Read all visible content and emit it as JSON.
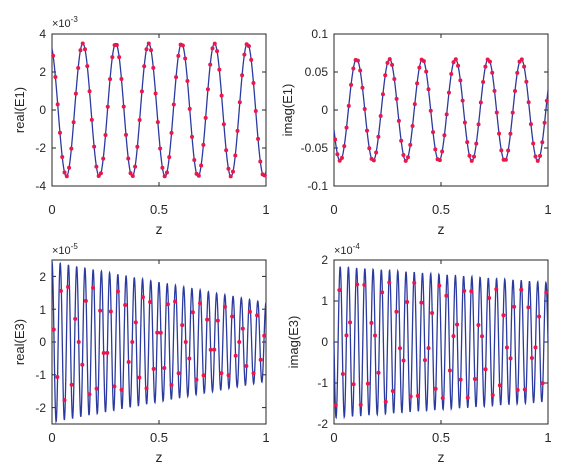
{
  "chart_data": [
    {
      "type": "line",
      "ylabel": "real(E1)",
      "xlabel": "z",
      "xlim": [
        0,
        1
      ],
      "ylim": [
        -4,
        4
      ],
      "exponent": "×10",
      "exponent_power": "-3",
      "xticks": [
        "0",
        "0.5",
        "1"
      ],
      "yticks": [
        "-4",
        "-2",
        "0",
        "2",
        "4"
      ],
      "yticks_values": [
        -4,
        -2,
        0,
        2,
        4
      ],
      "line_color": "#2b3a9e",
      "marker_color": "#e8174c",
      "wave": {
        "amplitude_start": 3.5,
        "amplitude_end": 3.5,
        "periods": 6.5,
        "phase_at_zero": 0.4,
        "markers": 94,
        "marker_amp_scale": 1.0
      }
    },
    {
      "type": "line",
      "ylabel": "imag(E1)",
      "xlabel": "z",
      "xlim": [
        0,
        1
      ],
      "ylim": [
        -0.1,
        0.1
      ],
      "xticks": [
        "0",
        "0.5",
        "1"
      ],
      "yticks": [
        "-0.1",
        "-0.05",
        "0",
        "0.05",
        "0.1"
      ],
      "yticks_values": [
        -0.1,
        -0.05,
        0,
        0.05,
        0.1
      ],
      "line_color": "#2b3a9e",
      "marker_color": "#e8174c",
      "wave": {
        "amplitude_start": 0.067,
        "amplitude_end": 0.067,
        "periods": 6.5,
        "phase_at_zero": 1.97,
        "markers": 94,
        "marker_amp_scale": 1.0
      }
    },
    {
      "type": "line",
      "ylabel": "real(E3)",
      "xlabel": "z",
      "xlim": [
        0,
        1
      ],
      "ylim": [
        -2.5,
        2.5
      ],
      "exponent": "×10",
      "exponent_power": "-5",
      "xticks": [
        "0",
        "0.5",
        "1"
      ],
      "yticks": [
        "-2",
        "-1",
        "0",
        "1",
        "2"
      ],
      "yticks_values": [
        -2,
        -1,
        0,
        1,
        2
      ],
      "line_color": "#2b3a9e",
      "marker_color": "#e8174c",
      "wave": {
        "amplitude_start": 2.45,
        "amplitude_end": 1.2,
        "periods": 26,
        "phase_at_zero": 0.0,
        "markers": 60,
        "marker_amp_scale": 0.75
      }
    },
    {
      "type": "line",
      "ylabel": "imag(E3)",
      "xlabel": "z",
      "xlim": [
        0,
        1
      ],
      "ylim": [
        -2,
        2
      ],
      "exponent": "×10",
      "exponent_power": "-4",
      "xticks": [
        "0",
        "0.5",
        "1"
      ],
      "yticks": [
        "-2",
        "-1",
        "0",
        "1",
        "2"
      ],
      "yticks_values": [
        -2,
        -1,
        0,
        1,
        2
      ],
      "line_color": "#2b3a9e",
      "marker_color": "#e8174c",
      "wave": {
        "amplitude_start": 1.85,
        "amplitude_end": 1.45,
        "periods": 26,
        "phase_at_zero": 1.5708,
        "markers": 60,
        "marker_amp_scale": 0.85
      }
    }
  ]
}
